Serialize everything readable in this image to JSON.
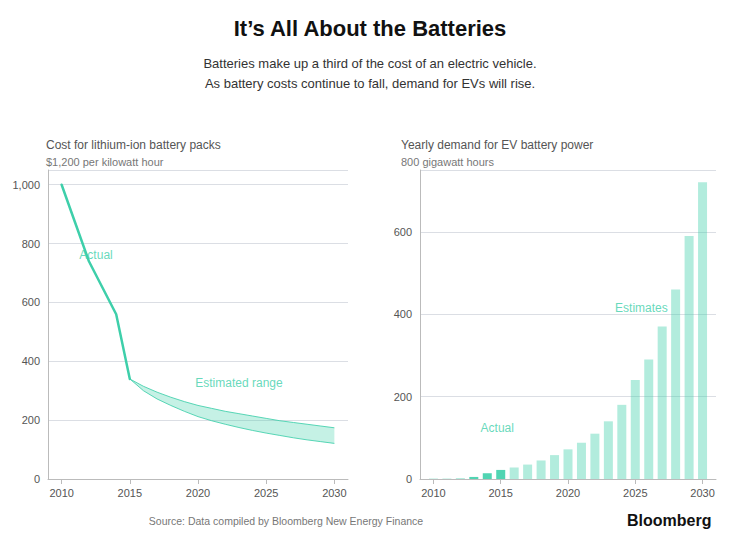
{
  "title": "It’s All About the Batteries",
  "subtitle": [
    "Batteries make up a third of the cost of an electric vehicle.",
    "As battery costs continue to fall, demand for EVs will rise."
  ],
  "annotations": [
    {
      "text": "Source: Data compiled by Bloomberg New Energy Finance"
    },
    {
      "text": "Bloomberg"
    }
  ],
  "chart_data": [
    {
      "type": "line",
      "title": "Cost for lithium-ion battery packs",
      "ylabel": "$1,200 per kilowatt hour",
      "xlim": [
        2009,
        2031
      ],
      "xticks": [
        2010,
        2015,
        2020,
        2025,
        2030
      ],
      "ylim": [
        0,
        1050
      ],
      "yticks": [
        0,
        200,
        400,
        600,
        800,
        {
          "value": 1000,
          "label": "1,000"
        }
      ],
      "grid": true,
      "series": [
        {
          "type": "line",
          "color": "#3ecfaa",
          "x": [
            2010,
            2011,
            2012,
            2013,
            2014,
            2015
          ],
          "values": [
            1000,
            870,
            740,
            650,
            560,
            340
          ]
        },
        {
          "type": "band",
          "color": "#3ecfaa",
          "x": [
            2015,
            2016,
            2017,
            2018,
            2019,
            2020,
            2021,
            2022,
            2023,
            2024,
            2025,
            2026,
            2027,
            2028,
            2029,
            2030
          ],
          "upper": [
            340,
            315,
            295,
            278,
            263,
            250,
            240,
            230,
            222,
            214,
            206,
            198,
            192,
            186,
            180,
            174
          ],
          "lower": [
            340,
            300,
            272,
            250,
            230,
            212,
            198,
            186,
            175,
            165,
            156,
            148,
            140,
            133,
            127,
            121
          ]
        }
      ],
      "annotations": [
        {
          "text": "Actual",
          "x": 2011.3,
          "y": 740
        },
        {
          "text": "Estimated range",
          "x": 2019.8,
          "y": 305
        }
      ]
    },
    {
      "type": "bar",
      "title": "Yearly demand for EV battery power",
      "ylabel": "800 gigawatt hours",
      "xlim": [
        2009,
        2031
      ],
      "xticks": [
        2010,
        2015,
        2020,
        2025,
        2030
      ],
      "ylim": [
        0,
        750
      ],
      "yticks": [
        0,
        200,
        400,
        600
      ],
      "grid": true,
      "series": [
        {
          "type": "bar",
          "color": "#3ecfaa",
          "x": [
            2010,
            2011,
            2012,
            2013,
            2014,
            2015
          ],
          "values": [
            0.5,
            0.5,
            1,
            5,
            14,
            22
          ]
        },
        {
          "type": "bar",
          "color": "#3ecfaa",
          "x": [
            2016,
            2017,
            2018,
            2019,
            2020,
            2021,
            2022,
            2023,
            2024,
            2025,
            2026,
            2027,
            2028,
            2029,
            2030
          ],
          "values": [
            28,
            35,
            45,
            58,
            72,
            88,
            110,
            140,
            180,
            240,
            290,
            370,
            460,
            590,
            720
          ]
        }
      ],
      "annotations": [
        {
          "text": "Actual",
          "x": 2013.5,
          "y": 110
        },
        {
          "text": "Estimates",
          "x": 2023.5,
          "y": 400
        }
      ]
    }
  ]
}
